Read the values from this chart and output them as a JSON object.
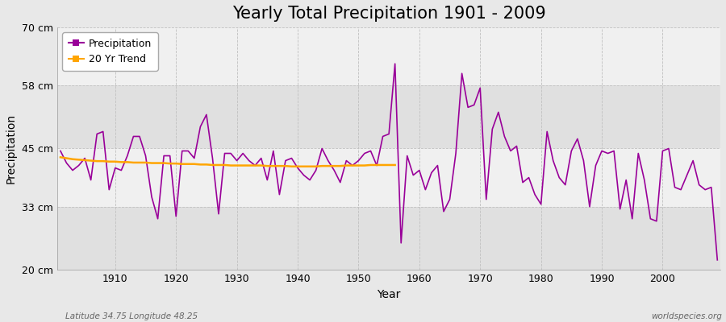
{
  "title": "Yearly Total Precipitation 1901 - 2009",
  "xlabel": "Year",
  "ylabel": "Precipitation",
  "subtitle_left": "Latitude 34.75 Longitude 48.25",
  "subtitle_right": "worldspecies.org",
  "years": [
    1901,
    1902,
    1903,
    1904,
    1905,
    1906,
    1907,
    1908,
    1909,
    1910,
    1911,
    1912,
    1913,
    1914,
    1915,
    1916,
    1917,
    1918,
    1919,
    1920,
    1921,
    1922,
    1923,
    1924,
    1925,
    1926,
    1927,
    1928,
    1929,
    1930,
    1931,
    1932,
    1933,
    1934,
    1935,
    1936,
    1937,
    1938,
    1939,
    1940,
    1941,
    1942,
    1943,
    1944,
    1945,
    1946,
    1947,
    1948,
    1949,
    1950,
    1951,
    1952,
    1953,
    1954,
    1955,
    1956,
    1957,
    1958,
    1959,
    1960,
    1961,
    1962,
    1963,
    1964,
    1965,
    1966,
    1967,
    1968,
    1969,
    1970,
    1971,
    1972,
    1973,
    1974,
    1975,
    1976,
    1977,
    1978,
    1979,
    1980,
    1981,
    1982,
    1983,
    1984,
    1985,
    1986,
    1987,
    1988,
    1989,
    1990,
    1991,
    1992,
    1993,
    1994,
    1995,
    1996,
    1997,
    1998,
    1999,
    2000,
    2001,
    2002,
    2003,
    2004,
    2005,
    2006,
    2007,
    2008,
    2009
  ],
  "precip": [
    44.5,
    42.0,
    40.5,
    41.5,
    43.0,
    38.5,
    48.0,
    48.5,
    36.5,
    41.0,
    40.5,
    43.5,
    47.5,
    47.5,
    43.5,
    35.0,
    30.5,
    43.5,
    43.5,
    31.0,
    44.5,
    44.5,
    43.0,
    49.5,
    52.0,
    43.0,
    31.5,
    44.0,
    44.0,
    42.5,
    44.0,
    42.5,
    41.5,
    43.0,
    38.5,
    44.5,
    35.5,
    42.5,
    43.0,
    41.0,
    39.5,
    38.5,
    40.5,
    45.0,
    42.5,
    40.5,
    38.0,
    42.5,
    41.5,
    42.5,
    44.0,
    44.5,
    41.5,
    47.5,
    48.0,
    62.5,
    25.5,
    43.5,
    39.5,
    40.5,
    36.5,
    40.0,
    41.5,
    32.0,
    34.5,
    44.0,
    60.5,
    53.5,
    54.0,
    57.5,
    34.5,
    49.0,
    52.5,
    47.5,
    44.5,
    45.5,
    38.0,
    39.0,
    35.5,
    33.5,
    48.5,
    42.5,
    39.0,
    37.5,
    44.5,
    47.0,
    42.5,
    33.0,
    41.5,
    44.5,
    44.0,
    44.5,
    32.5,
    38.5,
    30.5,
    44.0,
    38.5,
    30.5,
    30.0,
    44.5,
    45.0,
    37.0,
    36.5,
    39.5,
    42.5,
    37.5,
    36.5,
    37.0,
    22.0
  ],
  "trend_years": [
    1901,
    1902,
    1903,
    1904,
    1905,
    1906,
    1907,
    1908,
    1909,
    1910,
    1911,
    1912,
    1913,
    1914,
    1915,
    1916,
    1917,
    1918,
    1919,
    1920,
    1921,
    1922,
    1923,
    1924,
    1925,
    1926,
    1927,
    1928,
    1929,
    1930,
    1931,
    1932,
    1933,
    1934,
    1935,
    1936,
    1937,
    1938,
    1939,
    1940,
    1941,
    1942,
    1943,
    1944,
    1945,
    1946,
    1947,
    1948,
    1949,
    1950,
    1951,
    1952,
    1953,
    1954,
    1955,
    1956
  ],
  "trend_values": [
    43.2,
    43.0,
    42.8,
    42.7,
    42.6,
    42.5,
    42.4,
    42.4,
    42.3,
    42.3,
    42.2,
    42.2,
    42.1,
    42.1,
    42.1,
    42.0,
    42.0,
    42.0,
    41.9,
    41.9,
    41.8,
    41.8,
    41.8,
    41.7,
    41.7,
    41.6,
    41.6,
    41.6,
    41.5,
    41.5,
    41.5,
    41.5,
    41.5,
    41.5,
    41.4,
    41.4,
    41.4,
    41.4,
    41.3,
    41.3,
    41.3,
    41.3,
    41.3,
    41.4,
    41.4,
    41.4,
    41.4,
    41.5,
    41.5,
    41.5,
    41.5,
    41.6,
    41.6,
    41.6,
    41.6,
    41.6
  ],
  "precip_color": "#990099",
  "trend_color": "#FFA500",
  "fig_bg_color": "#E8E8E8",
  "plot_bg_light": "#F0F0F0",
  "plot_bg_dark": "#E0E0E0",
  "ylim": [
    20,
    70
  ],
  "yticks": [
    20,
    33,
    45,
    58,
    70
  ],
  "ytick_labels": [
    "20 cm",
    "33 cm",
    "45 cm",
    "58 cm",
    "70 cm"
  ],
  "xticks": [
    1910,
    1920,
    1930,
    1940,
    1950,
    1960,
    1970,
    1980,
    1990,
    2000
  ],
  "title_fontsize": 15,
  "axis_label_fontsize": 10,
  "tick_fontsize": 9,
  "legend_fontsize": 9,
  "line_width": 1.2
}
